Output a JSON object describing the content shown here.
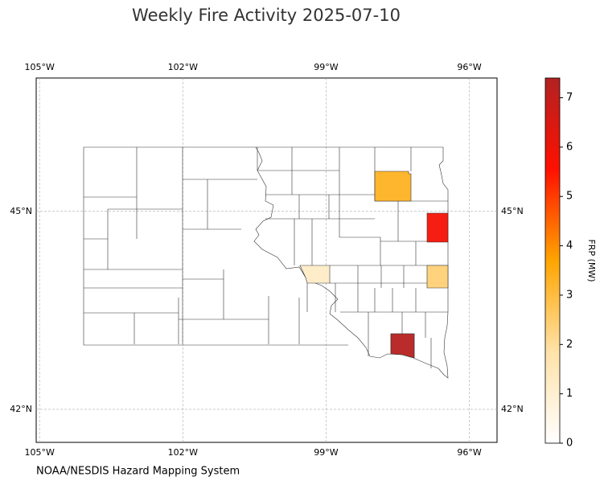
{
  "chart_data": {
    "type": "choropleth",
    "title": "Weekly Fire Activity 2025-07-10",
    "source": "NOAA/NESDIS Hazard Mapping System",
    "xlim": [
      -105.07,
      -95.42
    ],
    "ylim": [
      41.5,
      47.02
    ],
    "xticks": [
      {
        "value": -105,
        "label": "105°W"
      },
      {
        "value": -102,
        "label": "102°W"
      },
      {
        "value": -99,
        "label": "99°W"
      },
      {
        "value": -96,
        "label": "96°W"
      }
    ],
    "yticks": [
      {
        "value": 42,
        "label": "42°N"
      },
      {
        "value": 45,
        "label": "45°N"
      }
    ],
    "grid": true,
    "colorbar_label": "FRP (MW)",
    "clim": [
      0,
      7.4
    ],
    "cticks": [
      0,
      1,
      2,
      3,
      4,
      5,
      6,
      7
    ],
    "colors": [
      "#ffffff",
      "#ffe2a8",
      "#ffa500",
      "#ff1000",
      "#b22222"
    ],
    "values": [
      3.3,
      5.8,
      1.2,
      2.4,
      7.3
    ]
  }
}
